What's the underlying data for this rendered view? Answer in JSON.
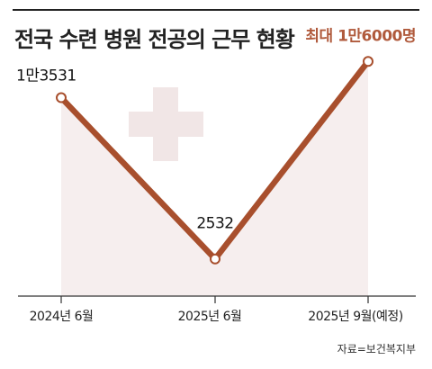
{
  "header": {
    "title": "전국 수련 병원 전공의 근무 현황"
  },
  "footer": {
    "source": "자료=보건복지부"
  },
  "colors": {
    "line": "#a84f2d",
    "area": "#f6eeee",
    "cross": "#f1e6e6",
    "highlight": "#b05a3c"
  },
  "icons": {
    "background": "medical-cross-icon"
  },
  "chart_data": {
    "type": "line",
    "title": "전국 수련 병원 전공의 근무 현황",
    "categories": [
      "2024년 6월",
      "2025년 6월",
      "2025년 9월(예정)"
    ],
    "series": [
      {
        "values": [
          13531,
          2532,
          16000
        ],
        "labels": [
          "1만3531",
          "2532",
          "최대 1만6000명"
        ]
      }
    ],
    "ylim": [
      0,
      17000
    ],
    "grid": false,
    "legend": "none"
  }
}
